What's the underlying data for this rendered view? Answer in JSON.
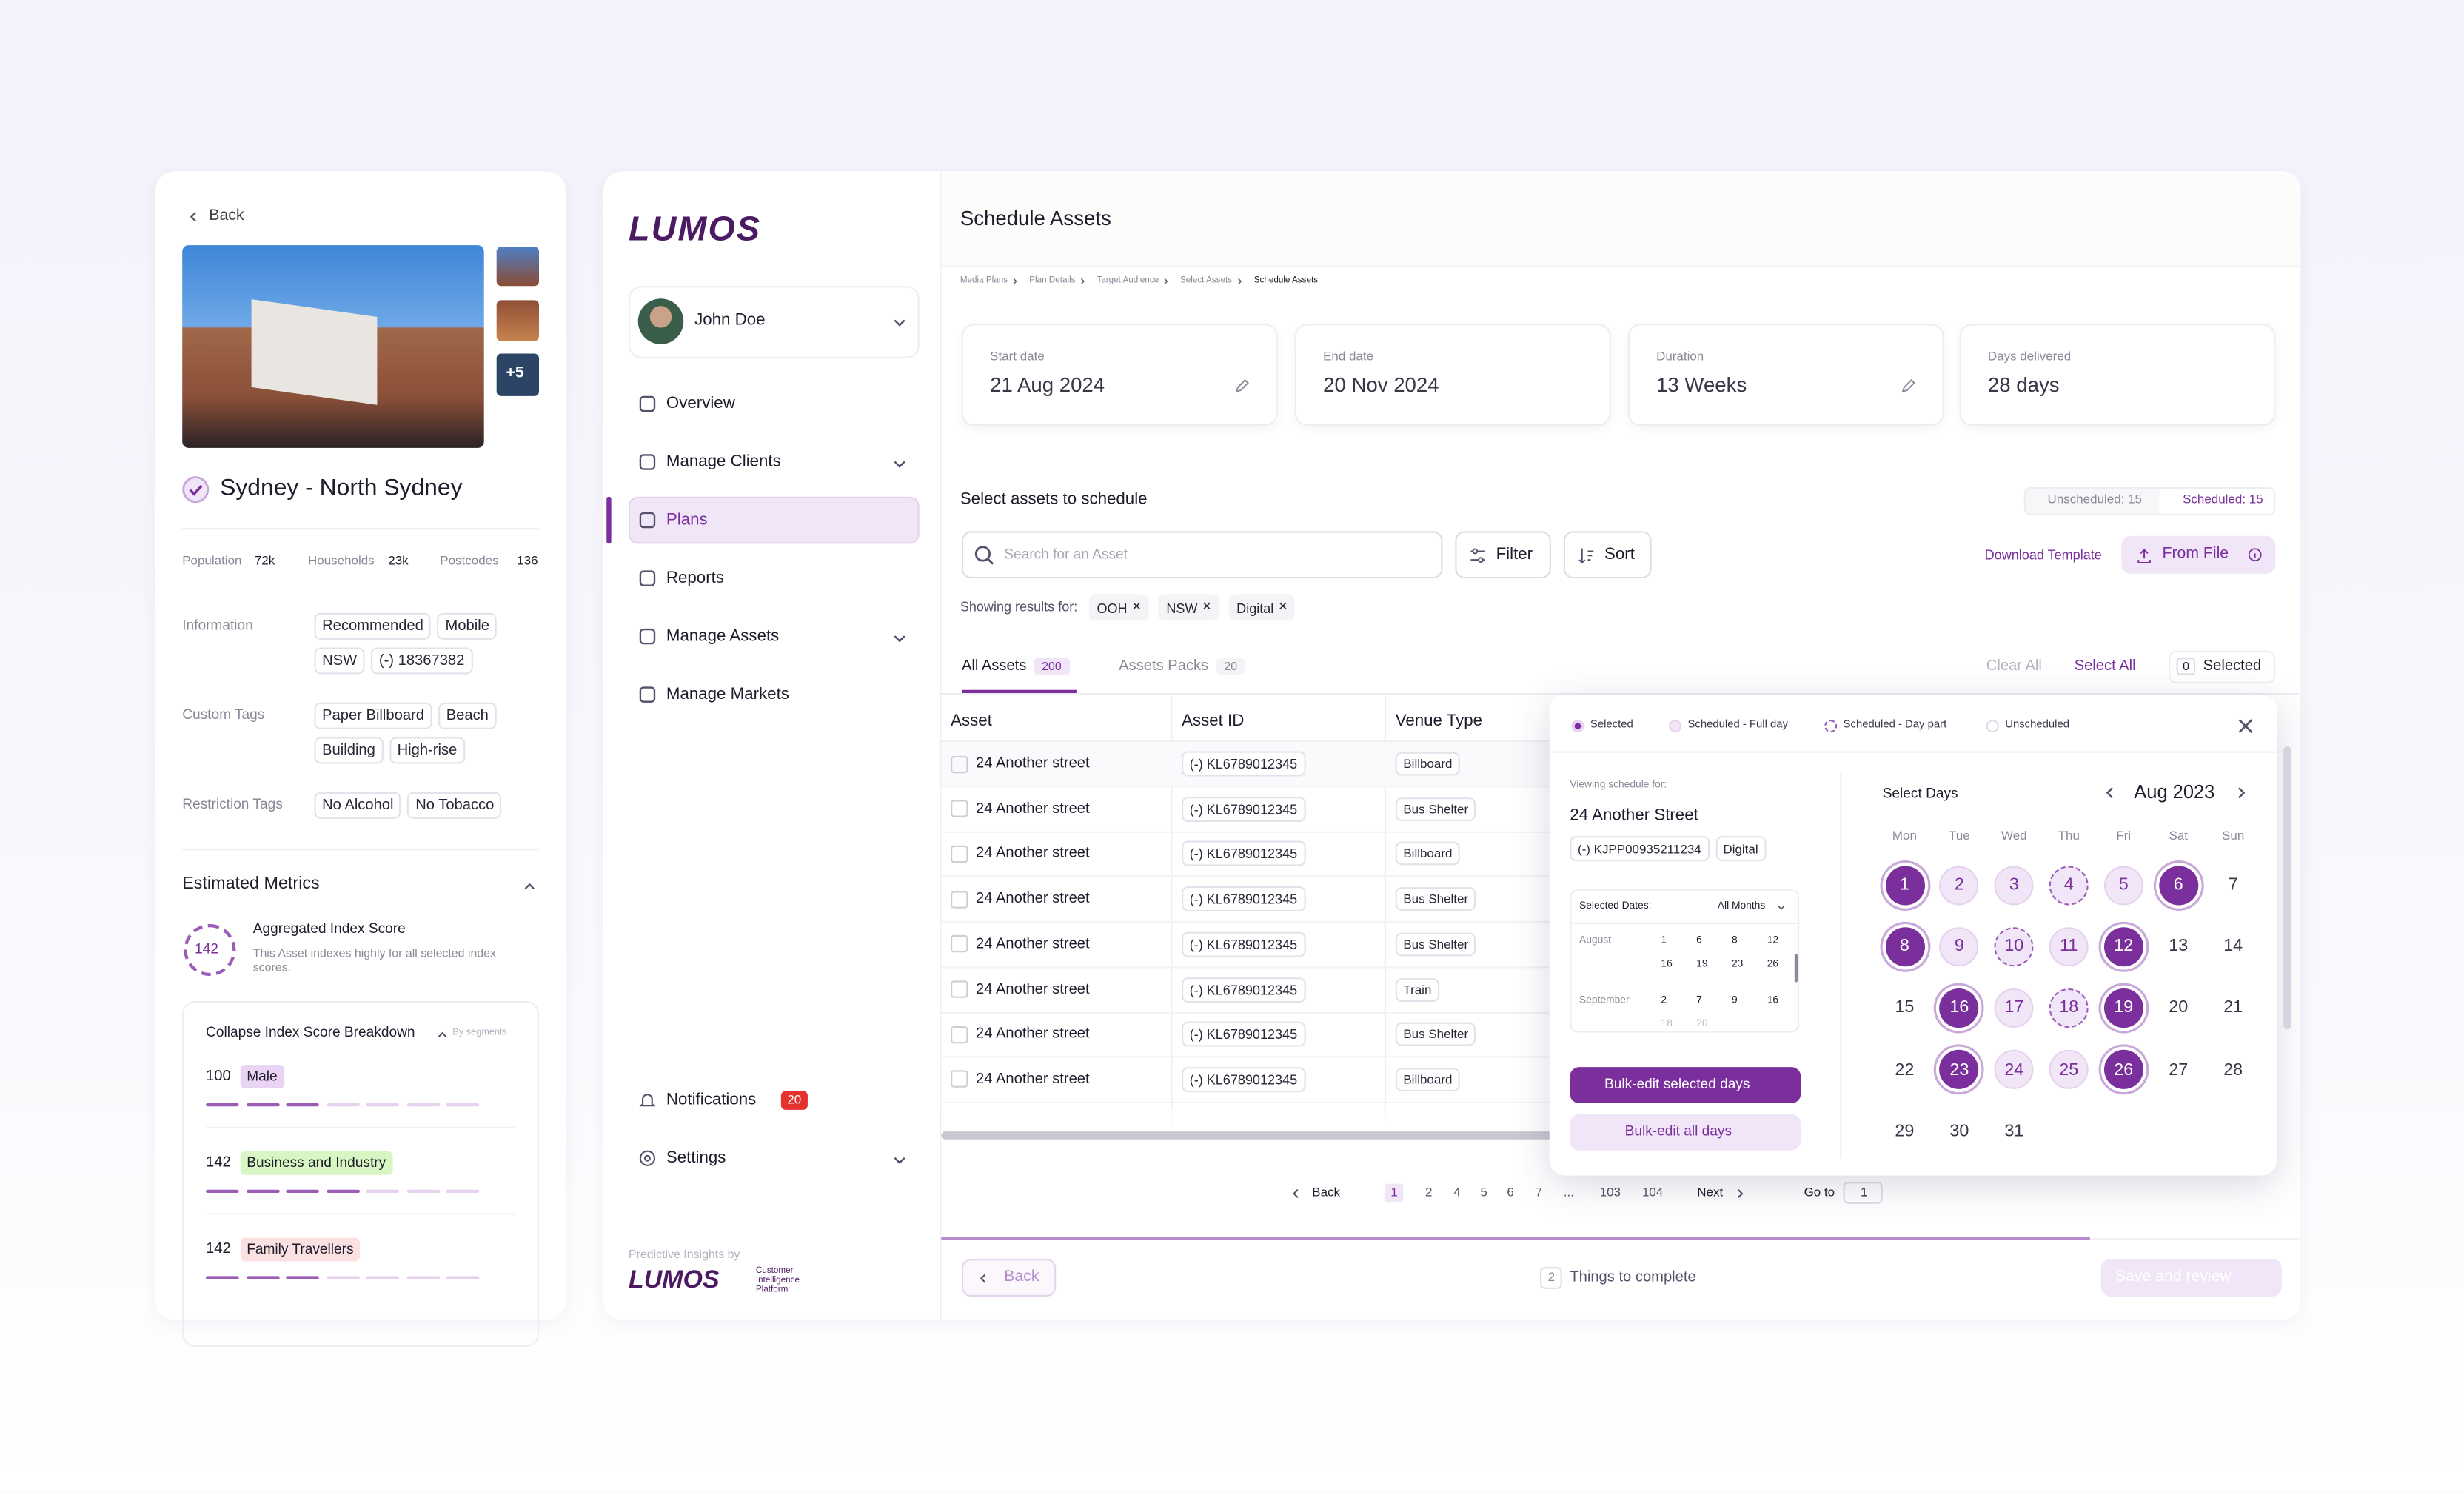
{
  "left_panel": {
    "back": "Back",
    "more_photos": "+5",
    "title": "Sydney - North Sydney",
    "stats": [
      {
        "label": "Population",
        "value": "72k"
      },
      {
        "label": "Households",
        "value": "23k"
      },
      {
        "label": "Postcodes",
        "value": "136"
      }
    ],
    "tag_groups": [
      {
        "label": "Information",
        "tags": [
          "Recommended",
          "Mobile",
          "NSW",
          "(-) 18367382"
        ]
      },
      {
        "label": "Custom Tags",
        "tags": [
          "Paper Billboard",
          "Beach",
          "Building",
          "High-rise"
        ]
      },
      {
        "label": "Restriction Tags",
        "tags": [
          "No Alcohol",
          "No Tobacco"
        ]
      }
    ],
    "metrics": {
      "title": "Estimated Metrics",
      "score": "142",
      "score_title": "Aggregated Index Score",
      "score_text": "This Asset indexes highly for all selected index scores.",
      "breakdown_title": "Collapse Index Score Breakdown",
      "breakdown_hint": "By segments",
      "segments": [
        {
          "score": "100",
          "name": "Male",
          "color": "#ead4f3"
        },
        {
          "score": "142",
          "name": "Business and Industry",
          "color": "#d8f5c4"
        },
        {
          "score": "142",
          "name": "Family Travellers",
          "color": "#fbe1e1"
        }
      ]
    }
  },
  "sidebar": {
    "logo": "LUMOS",
    "user": "John Doe",
    "nav": [
      "Overview",
      "Manage Clients",
      "Plans",
      "Reports",
      "Manage Assets",
      "Manage Markets"
    ],
    "notifications": "Notifications",
    "notification_count": "20",
    "settings": "Settings",
    "footer_by": "Predictive Insights by",
    "footer_logo": "LUMOS",
    "footer_sub": "Customer Intelligence Platform"
  },
  "main": {
    "title": "Schedule Assets",
    "breadcrumbs": [
      "Media Plans",
      "Plan Details",
      "Target Audience",
      "Select Assets",
      "Schedule Assets"
    ],
    "summary": [
      {
        "label": "Start date",
        "value": "21 Aug 2024"
      },
      {
        "label": "End date",
        "value": "20 Nov 2024"
      },
      {
        "label": "Duration",
        "value": "13 Weeks"
      },
      {
        "label": "Days delivered",
        "value": "28 days"
      }
    ],
    "section_title": "Select assets to schedule",
    "unscheduled": "Unscheduled: 15",
    "scheduled": "Scheduled: 15",
    "search_placeholder": "Search for an Asset",
    "filter": "Filter",
    "sort": "Sort",
    "download": "Download Template",
    "from_file": "From File",
    "showing": "Showing results for:",
    "chips": [
      "OOH",
      "NSW",
      "Digital"
    ],
    "tabs": [
      {
        "label": "All Assets",
        "count": "200"
      },
      {
        "label": "Assets Packs",
        "count": "20"
      }
    ],
    "clear_all": "Clear All",
    "select_all": "Select All",
    "selected_count": "0",
    "selected": "Selected",
    "columns": [
      "Asset",
      "Asset ID",
      "Venue Type"
    ],
    "rows": [
      [
        "24 Another street",
        "(-) KL6789012345",
        "Billboard"
      ],
      [
        "24 Another street",
        "(-) KL6789012345",
        "Bus Shelter"
      ],
      [
        "24 Another street",
        "(-) KL6789012345",
        "Billboard"
      ],
      [
        "24 Another street",
        "(-) KL6789012345",
        "Bus Shelter"
      ],
      [
        "24 Another street",
        "(-) KL6789012345",
        "Bus Shelter"
      ],
      [
        "24 Another street",
        "(-) KL6789012345",
        "Train"
      ],
      [
        "24 Another street",
        "(-) KL6789012345",
        "Bus Shelter"
      ],
      [
        "24 Another street",
        "(-) KL6789012345",
        "Billboard"
      ]
    ],
    "pagination": {
      "back": "Back",
      "pages": [
        "1",
        "2",
        "4",
        "5",
        "6",
        "7",
        "...",
        "103",
        "104"
      ],
      "next": "Next",
      "goto": "Go to",
      "goto_value": "1"
    },
    "footer": {
      "back": "Back",
      "count": "2",
      "things": "Things to complete",
      "save": "Save and review"
    }
  },
  "popup": {
    "legend": [
      "Selected",
      "Scheduled - Full day",
      "Scheduled - Day part",
      "Unscheduled"
    ],
    "viewing": "Viewing schedule for:",
    "asset": "24 Another Street",
    "asset_id": "(-) KJPP00935211234",
    "asset_type": "Digital",
    "selected_dates": "Selected Dates:",
    "all_months": "All Months",
    "date_rows": [
      {
        "month": "August",
        "days": [
          "1",
          "6",
          "8",
          "12",
          "16",
          "19",
          "23",
          "26"
        ]
      },
      {
        "month": "September",
        "days": [
          "2",
          "7",
          "9",
          "16",
          "18",
          "20"
        ]
      }
    ],
    "bulk_selected": "Bulk-edit selected days",
    "bulk_all": "Bulk-edit all days",
    "select_days": "Select Days",
    "month": "Aug 2023",
    "weekdays": [
      "Mon",
      "Tue",
      "Wed",
      "Thu",
      "Fri",
      "Sat",
      "Sun"
    ],
    "days": [
      {
        "day": "1",
        "status": "selected"
      },
      {
        "day": "2",
        "status": "full"
      },
      {
        "day": "3",
        "status": "full"
      },
      {
        "day": "4",
        "status": "part"
      },
      {
        "day": "5",
        "status": "full"
      },
      {
        "day": "6",
        "status": "selected"
      },
      {
        "day": "7",
        "status": "none"
      },
      {
        "day": "8",
        "status": "selected"
      },
      {
        "day": "9",
        "status": "full"
      },
      {
        "day": "10",
        "status": "part"
      },
      {
        "day": "11",
        "status": "full"
      },
      {
        "day": "12",
        "status": "selected"
      },
      {
        "day": "13",
        "status": "none"
      },
      {
        "day": "14",
        "status": "none"
      },
      {
        "day": "15",
        "status": "none"
      },
      {
        "day": "16",
        "status": "selected"
      },
      {
        "day": "17",
        "status": "full"
      },
      {
        "day": "18",
        "status": "part"
      },
      {
        "day": "19",
        "status": "selected"
      },
      {
        "day": "20",
        "status": "none"
      },
      {
        "day": "21",
        "status": "none"
      },
      {
        "day": "22",
        "status": "none"
      },
      {
        "day": "23",
        "status": "selected"
      },
      {
        "day": "24",
        "status": "full"
      },
      {
        "day": "25",
        "status": "full"
      },
      {
        "day": "26",
        "status": "selected"
      },
      {
        "day": "27",
        "status": "none"
      },
      {
        "day": "28",
        "status": "none"
      },
      {
        "day": "29",
        "status": "none"
      },
      {
        "day": "30",
        "status": "none"
      },
      {
        "day": "31",
        "status": "none"
      }
    ]
  }
}
